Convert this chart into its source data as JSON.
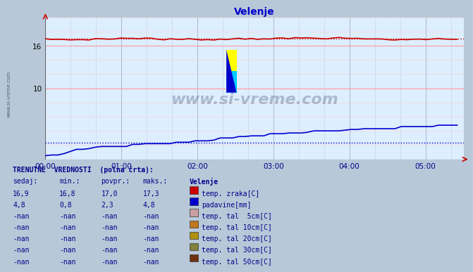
{
  "title": "Velenje",
  "title_color": "#0000cc",
  "chart_bg_color": "#ddeeff",
  "outer_bg_color": "#b8c8d8",
  "grid_h_major_color": "#ff9999",
  "grid_h_minor_color": "#ffcccc",
  "grid_v_color": "#aaaacc",
  "grid_v_minor_color": "#ccccdd",
  "x_ticks": [
    "00:00",
    "01:00",
    "02:00",
    "03:00",
    "04:00",
    "05:00"
  ],
  "x_tick_positions": [
    0,
    60,
    120,
    180,
    240,
    300
  ],
  "x_max": 330,
  "y_min": 0,
  "y_max": 20,
  "y_ticks": [
    10,
    16
  ],
  "temp_color": "#cc0000",
  "precip_color": "#0000cc",
  "temp_avg": 17.0,
  "precip_avg": 2.3,
  "watermark": "www.si-vreme.com",
  "watermark_color": "#334466",
  "sidebar_text": "www.si-vreme.com",
  "legend_items": [
    {
      "label": "temp. zraka[C]",
      "color": "#cc0000"
    },
    {
      "label": "padavine[mm]",
      "color": "#0000cc"
    },
    {
      "label": "temp. tal  5cm[C]",
      "color": "#c8a0a0"
    },
    {
      "label": "temp. tal 10cm[C]",
      "color": "#c07820"
    },
    {
      "label": "temp. tal 20cm[C]",
      "color": "#b09010"
    },
    {
      "label": "temp. tal 30cm[C]",
      "color": "#808040"
    },
    {
      "label": "temp. tal 50cm[C]",
      "color": "#703010"
    }
  ],
  "table_header": "TRENUTNE  VREDNOSTI  (polna črta):",
  "table_cols": [
    "sedaj:",
    "min.:",
    "povpr.:",
    "maks.:",
    "Velenje"
  ],
  "table_rows": [
    [
      "16,9",
      "16,8",
      "17,0",
      "17,3",
      "temp. zraka[C]"
    ],
    [
      "4,8",
      "0,8",
      "2,3",
      "4,8",
      "padavine[mm]"
    ],
    [
      "-nan",
      "-nan",
      "-nan",
      "-nan",
      "temp. tal  5cm[C]"
    ],
    [
      "-nan",
      "-nan",
      "-nan",
      "-nan",
      "temp. tal 10cm[C]"
    ],
    [
      "-nan",
      "-nan",
      "-nan",
      "-nan",
      "temp. tal 20cm[C]"
    ],
    [
      "-nan",
      "-nan",
      "-nan",
      "-nan",
      "temp. tal 30cm[C]"
    ],
    [
      "-nan",
      "-nan",
      "-nan",
      "-nan",
      "temp. tal 50cm[C]"
    ]
  ]
}
